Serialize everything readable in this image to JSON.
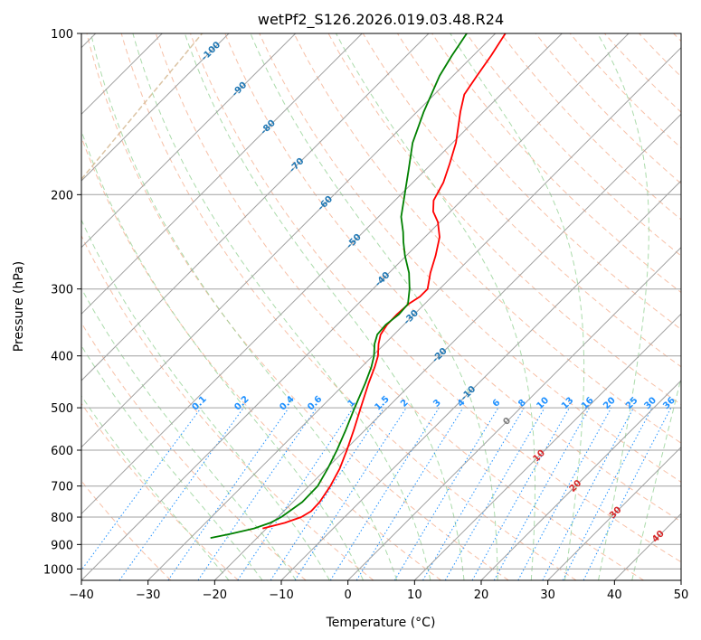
{
  "chart_data": {
    "type": "line",
    "subtype": "skew-t log-p diagram",
    "title": "wetPf2_S126.2026.019.03.48.R24",
    "xlabel": "Temperature (°C)",
    "ylabel": "Pressure (hPa)",
    "xlim": [
      -40,
      50
    ],
    "ylim_hpa": [
      1050,
      100
    ],
    "x_ticks": [
      -40,
      -30,
      -20,
      -10,
      0,
      10,
      20,
      30,
      40,
      50
    ],
    "x_tick_labels": [
      "−40",
      "−30",
      "−20",
      "−10",
      "0",
      "10",
      "20",
      "30",
      "40",
      "50"
    ],
    "y_ticks": [
      100,
      200,
      300,
      400,
      500,
      600,
      700,
      800,
      900,
      1000
    ],
    "y_tick_labels": [
      "100",
      "200",
      "300",
      "400",
      "500",
      "600",
      "700",
      "800",
      "900",
      "1000"
    ],
    "grid": true,
    "colors": {
      "temperature": "#ff0000",
      "dewpoint": "#008000",
      "isotherm": "#a0a0a0",
      "dry_adiabat": "#f4a582",
      "moist_adiabat": "#8fcf8f",
      "mixing_ratio": "#1e90ff",
      "isotherm_label_cold": "#1f77b4",
      "isotherm_label_warm": "#d62728",
      "isotherm_label_zero": "#7f7f7f",
      "ice_curve": "#d2b48c"
    },
    "series": [
      {
        "name": "Temperature",
        "color": "#ff0000",
        "points": [
          {
            "p": 840,
            "t": -20.6
          },
          {
            "p": 820,
            "t": -18.1
          },
          {
            "p": 800,
            "t": -16.5
          },
          {
            "p": 780,
            "t": -15.9
          },
          {
            "p": 750,
            "t": -16.0
          },
          {
            "p": 700,
            "t": -16.8
          },
          {
            "p": 650,
            "t": -18.0
          },
          {
            "p": 600,
            "t": -19.7
          },
          {
            "p": 550,
            "t": -21.7
          },
          {
            "p": 500,
            "t": -24.0
          },
          {
            "p": 450,
            "t": -26.5
          },
          {
            "p": 420,
            "t": -28.0
          },
          {
            "p": 400,
            "t": -29.2
          },
          {
            "p": 380,
            "t": -30.9
          },
          {
            "p": 365,
            "t": -32.0
          },
          {
            "p": 350,
            "t": -32.5
          },
          {
            "p": 335,
            "t": -32.6
          },
          {
            "p": 320,
            "t": -32.4
          },
          {
            "p": 310,
            "t": -31.8
          },
          {
            "p": 300,
            "t": -31.8
          },
          {
            "p": 280,
            "t": -33.8
          },
          {
            "p": 260,
            "t": -35.6
          },
          {
            "p": 240,
            "t": -37.8
          },
          {
            "p": 225,
            "t": -40.3
          },
          {
            "p": 215,
            "t": -42.6
          },
          {
            "p": 205,
            "t": -44.2
          },
          {
            "p": 190,
            "t": -45.4
          },
          {
            "p": 175,
            "t": -47.3
          },
          {
            "p": 160,
            "t": -49.5
          },
          {
            "p": 140,
            "t": -53.5
          },
          {
            "p": 130,
            "t": -55.5
          },
          {
            "p": 120,
            "t": -56.4
          },
          {
            "p": 110,
            "t": -57.3
          },
          {
            "p": 100,
            "t": -58.5
          }
        ]
      },
      {
        "name": "Dewpoint",
        "color": "#008000",
        "points": [
          {
            "p": 875,
            "t": -27.0
          },
          {
            "p": 860,
            "t": -24.6
          },
          {
            "p": 840,
            "t": -21.9
          },
          {
            "p": 820,
            "t": -20.3
          },
          {
            "p": 800,
            "t": -19.5
          },
          {
            "p": 750,
            "t": -18.6
          },
          {
            "p": 700,
            "t": -18.7
          },
          {
            "p": 650,
            "t": -19.8
          },
          {
            "p": 600,
            "t": -21.2
          },
          {
            "p": 550,
            "t": -22.9
          },
          {
            "p": 500,
            "t": -24.9
          },
          {
            "p": 450,
            "t": -27.0
          },
          {
            "p": 420,
            "t": -28.5
          },
          {
            "p": 400,
            "t": -29.8
          },
          {
            "p": 380,
            "t": -31.5
          },
          {
            "p": 365,
            "t": -32.5
          },
          {
            "p": 350,
            "t": -32.7
          },
          {
            "p": 335,
            "t": -32.3
          },
          {
            "p": 320,
            "t": -32.5
          },
          {
            "p": 300,
            "t": -34.5
          },
          {
            "p": 280,
            "t": -37.0
          },
          {
            "p": 260,
            "t": -40.2
          },
          {
            "p": 245,
            "t": -42.5
          },
          {
            "p": 235,
            "t": -44.0
          },
          {
            "p": 220,
            "t": -46.6
          },
          {
            "p": 200,
            "t": -49.4
          },
          {
            "p": 180,
            "t": -52.5
          },
          {
            "p": 160,
            "t": -56.0
          },
          {
            "p": 140,
            "t": -59.0
          },
          {
            "p": 120,
            "t": -62.0
          },
          {
            "p": 110,
            "t": -63.2
          },
          {
            "p": 100,
            "t": -64.3
          }
        ]
      }
    ],
    "isotherm_labels": [
      "-100",
      "-90",
      "-80",
      "-70",
      "-60",
      "-50",
      "-40",
      "-30",
      "-20",
      "-10",
      "0",
      "10",
      "20",
      "30",
      "40"
    ],
    "mixing_ratio_labels": [
      "0.1",
      "0.2",
      "0.4",
      "0.6",
      "1",
      "1.5",
      "2",
      "3",
      "4",
      "6",
      "8",
      "10",
      "13",
      "16",
      "20",
      "25",
      "30",
      "36"
    ],
    "mixing_ratio_values_gkg": [
      0.1,
      0.2,
      0.4,
      0.6,
      1,
      1.5,
      2,
      3,
      4,
      6,
      8,
      10,
      13,
      16,
      20,
      25,
      30,
      36
    ]
  }
}
